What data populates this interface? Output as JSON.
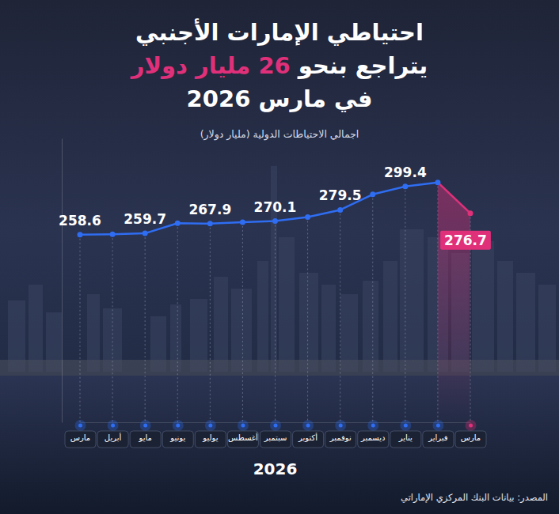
{
  "chart_data": {
    "type": "line",
    "title": [
      "احتياطي الإمارات الأجنبي",
      [
        "يتراجع بنحو ",
        "26 مليار دولار"
      ],
      "في مارس 2026"
    ],
    "subtitle": "اجمالي الاحتياطات الدولية (مليار دولار)",
    "xlabel": "2026",
    "source": "المصدر: بيانات البنك المركزي الإماراتي",
    "categories": [
      "مارس",
      "أبريل",
      "مايو",
      "يونيو",
      "يوليو",
      "أغسطس",
      "سبتمبر",
      "أكتوبر",
      "نوفمبر",
      "ديسمبر",
      "يناير",
      "فبراير",
      "مارس"
    ],
    "values": [
      258.6,
      258.9,
      259.7,
      268.3,
      267.9,
      269.2,
      270.1,
      273.5,
      279.5,
      292.7,
      299.4,
      302.8,
      276.7
    ],
    "value_labels": [
      "258.6",
      null,
      "259.7",
      null,
      "267.9",
      null,
      "270.1",
      null,
      "279.5",
      null,
      "299.4",
      null,
      "276.7"
    ],
    "color": "#2f6df2",
    "colors": [
      "#2f6df2",
      "#2f6df2",
      "#2f6df2",
      "#2f6df2",
      "#2f6df2",
      "#2f6df2",
      "#2f6df2",
      "#2f6df2",
      "#2f6df2",
      "#2f6df2",
      "#2f6df2",
      "#2f6df2",
      "#e0307a"
    ],
    "marker": "circle",
    "data_labels": true,
    "tick_labels": "x",
    "grid": false,
    "ylim": [
      100,
      340
    ],
    "yticks": []
  }
}
